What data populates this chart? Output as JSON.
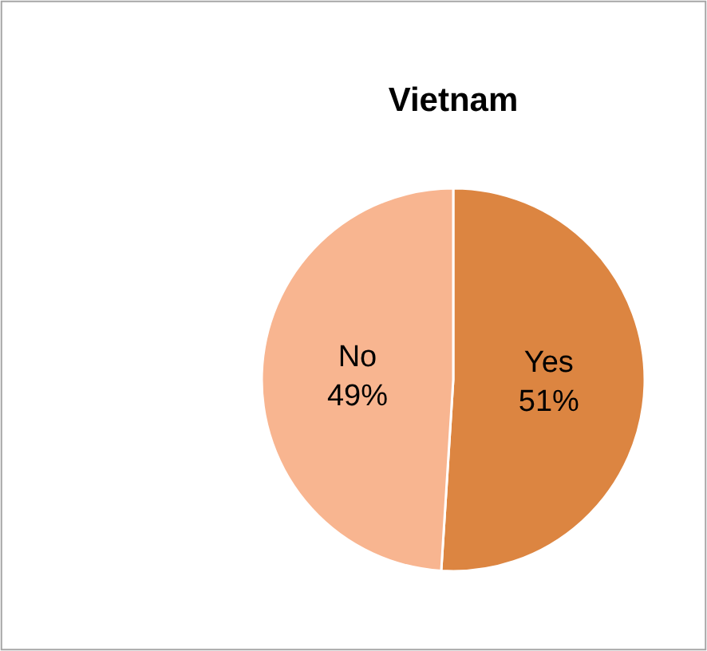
{
  "chart_data": {
    "type": "pie",
    "title": "Vietnam",
    "categories": [
      "Yes",
      "No"
    ],
    "values": [
      51,
      49
    ],
    "value_labels": [
      "51%",
      "49%"
    ],
    "colors": [
      "#dc8541",
      "#f8b590"
    ],
    "legend": false
  }
}
